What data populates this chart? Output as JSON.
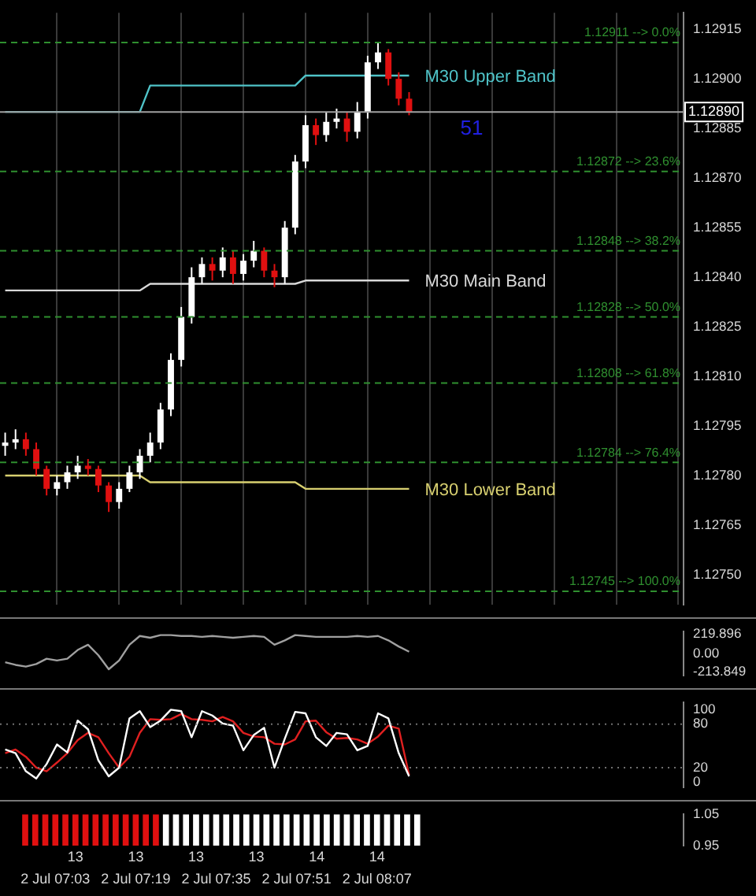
{
  "chart_data": [
    {
      "type": "candlestick",
      "categories": [
        null,
        null,
        null,
        null,
        null,
        null,
        null,
        null,
        null,
        null,
        null,
        null,
        null,
        null,
        null,
        null,
        null,
        null,
        null,
        null,
        null,
        null,
        null,
        null,
        null,
        null,
        null,
        null,
        null,
        null,
        null,
        null,
        null,
        null,
        null,
        null,
        null,
        null,
        null,
        null,
        null,
        null,
        null,
        null,
        null,
        null,
        null,
        null,
        null,
        null,
        null,
        null,
        null,
        null,
        null,
        null,
        null,
        null,
        null,
        null,
        null,
        null,
        null,
        null,
        null,
        null
      ],
      "ohlc": [
        [
          1.12789,
          1.12793,
          1.12786,
          1.1279
        ],
        [
          1.1279,
          1.12794,
          1.12788,
          1.12791
        ],
        [
          1.12791,
          1.12793,
          1.12786,
          1.12788
        ],
        [
          1.12788,
          1.1279,
          1.1278,
          1.12782
        ],
        [
          1.12782,
          1.12783,
          1.12774,
          1.12776
        ],
        [
          1.12776,
          1.1278,
          1.12774,
          1.12778
        ],
        [
          1.12778,
          1.12783,
          1.12776,
          1.12781
        ],
        [
          1.12781,
          1.12786,
          1.12779,
          1.12783
        ],
        [
          1.12783,
          1.12785,
          1.1278,
          1.12782
        ],
        [
          1.12782,
          1.12783,
          1.12775,
          1.12777
        ],
        [
          1.12777,
          1.12778,
          1.12769,
          1.12772
        ],
        [
          1.12772,
          1.12778,
          1.1277,
          1.12776
        ],
        [
          1.12776,
          1.12783,
          1.12775,
          1.12781
        ],
        [
          1.12781,
          1.12788,
          1.12779,
          1.12786
        ],
        [
          1.12786,
          1.12793,
          1.12784,
          1.1279
        ],
        [
          1.1279,
          1.12802,
          1.12788,
          1.128
        ],
        [
          1.128,
          1.12817,
          1.12798,
          1.12815
        ],
        [
          1.12815,
          1.12831,
          1.12813,
          1.12828
        ],
        [
          1.12828,
          1.12843,
          1.12826,
          1.1284
        ],
        [
          1.1284,
          1.12846,
          1.12838,
          1.12844
        ],
        [
          1.12844,
          1.12846,
          1.12839,
          1.12842
        ],
        [
          1.12842,
          1.12849,
          1.1284,
          1.12846
        ],
        [
          1.12846,
          1.12848,
          1.12838,
          1.12841
        ],
        [
          1.12841,
          1.12847,
          1.12839,
          1.12845
        ],
        [
          1.12845,
          1.12851,
          1.12843,
          1.12848
        ],
        [
          1.12848,
          1.12849,
          1.1284,
          1.12842
        ],
        [
          1.12842,
          1.12844,
          1.12837,
          1.1284
        ],
        [
          1.1284,
          1.12857,
          1.12838,
          1.12855
        ],
        [
          1.12855,
          1.12877,
          1.12853,
          1.12875
        ],
        [
          1.12875,
          1.12889,
          1.12873,
          1.12886
        ],
        [
          1.12886,
          1.12888,
          1.1288,
          1.12883
        ],
        [
          1.12883,
          1.1289,
          1.12881,
          1.12887
        ],
        [
          1.12887,
          1.12891,
          1.12885,
          1.12888
        ],
        [
          1.12888,
          1.1289,
          1.12881,
          1.12884
        ],
        [
          1.12884,
          1.12893,
          1.12882,
          1.1289
        ],
        [
          1.1289,
          1.12907,
          1.12888,
          1.12905
        ],
        [
          1.12905,
          1.12911,
          1.12903,
          1.12908
        ],
        [
          1.12908,
          1.12909,
          1.12898,
          1.129
        ],
        [
          1.129,
          1.12902,
          1.12892,
          1.12894
        ],
        [
          1.12894,
          1.12896,
          1.12889,
          1.1289
        ],
        null,
        null,
        null,
        null,
        null,
        null,
        null,
        null,
        null,
        null,
        null,
        null,
        null,
        null,
        null,
        null,
        null,
        null,
        null,
        null,
        null,
        null,
        null,
        null,
        null,
        null
      ],
      "colors": [
        "#ffffff",
        "#ffffff",
        "#e01010",
        "#e01010",
        "#e01010",
        "#ffffff",
        "#ffffff",
        "#ffffff",
        "#e01010",
        "#e01010",
        "#e01010",
        "#ffffff",
        "#ffffff",
        "#ffffff",
        "#ffffff",
        "#ffffff",
        "#ffffff",
        "#ffffff",
        "#ffffff",
        "#ffffff",
        "#e01010",
        "#ffffff",
        "#e01010",
        "#ffffff",
        "#ffffff",
        "#e01010",
        "#e01010",
        "#ffffff",
        "#ffffff",
        "#ffffff",
        "#e01010",
        "#ffffff",
        "#ffffff",
        "#e01010",
        "#ffffff",
        "#ffffff",
        "#ffffff",
        "#e01010",
        "#e01010",
        "#e01010",
        null,
        null,
        null,
        null,
        null,
        null,
        null,
        null,
        null,
        null,
        null,
        null,
        null,
        null,
        null,
        null,
        null,
        null,
        null,
        null,
        null,
        null,
        null,
        null,
        null,
        null
      ],
      "series": [
        {
          "name": "M30 Upper Band",
          "type": "line",
          "color": "#4fc3c8",
          "values": [
            1.1289,
            1.1289,
            1.1289,
            1.1289,
            1.1289,
            1.1289,
            1.1289,
            1.1289,
            1.1289,
            1.1289,
            1.1289,
            1.1289,
            1.1289,
            1.1289,
            1.12898,
            1.12898,
            1.12898,
            1.12898,
            1.12898,
            1.12898,
            1.12898,
            1.12898,
            1.12898,
            1.12898,
            1.12898,
            1.12898,
            1.12898,
            1.12898,
            1.12898,
            1.12901,
            1.12901,
            1.12901,
            1.12901,
            1.12901,
            1.12901,
            1.12901,
            1.12901,
            1.12901,
            1.12901,
            1.12901,
            null,
            null,
            null,
            null,
            null,
            null,
            null,
            null,
            null,
            null,
            null,
            null,
            null,
            null,
            null,
            null,
            null,
            null,
            null,
            null,
            null,
            null,
            null,
            null,
            null,
            null
          ]
        },
        {
          "name": "M30 Main Band",
          "type": "line",
          "color": "#d8d8d8",
          "values": [
            1.12836,
            1.12836,
            1.12836,
            1.12836,
            1.12836,
            1.12836,
            1.12836,
            1.12836,
            1.12836,
            1.12836,
            1.12836,
            1.12836,
            1.12836,
            1.12836,
            1.12838,
            1.12838,
            1.12838,
            1.12838,
            1.12838,
            1.12838,
            1.12838,
            1.12838,
            1.12838,
            1.12838,
            1.12838,
            1.12838,
            1.12838,
            1.12838,
            1.12838,
            1.12839,
            1.12839,
            1.12839,
            1.12839,
            1.12839,
            1.12839,
            1.12839,
            1.12839,
            1.12839,
            1.12839,
            1.12839,
            null,
            null,
            null,
            null,
            null,
            null,
            null,
            null,
            null,
            null,
            null,
            null,
            null,
            null,
            null,
            null,
            null,
            null,
            null,
            null,
            null,
            null,
            null,
            null,
            null,
            null
          ]
        },
        {
          "name": "M30 Lower Band",
          "type": "line",
          "color": "#d8d070",
          "values": [
            1.1278,
            1.1278,
            1.1278,
            1.1278,
            1.1278,
            1.1278,
            1.1278,
            1.1278,
            1.1278,
            1.1278,
            1.1278,
            1.1278,
            1.1278,
            1.1278,
            1.12778,
            1.12778,
            1.12778,
            1.12778,
            1.12778,
            1.12778,
            1.12778,
            1.12778,
            1.12778,
            1.12778,
            1.12778,
            1.12778,
            1.12778,
            1.12778,
            1.12778,
            1.12776,
            1.12776,
            1.12776,
            1.12776,
            1.12776,
            1.12776,
            1.12776,
            1.12776,
            1.12776,
            1.12776,
            1.12776,
            null,
            null,
            null,
            null,
            null,
            null,
            null,
            null,
            null,
            null,
            null,
            null,
            null,
            null,
            null,
            null,
            null,
            null,
            null,
            null,
            null,
            null,
            null,
            null,
            null,
            null
          ]
        }
      ],
      "ylim": [
        1.12741,
        1.1292
      ],
      "yticks": [
        {
          "value": 1.1275,
          "label": "1.12750"
        },
        {
          "value": 1.12765,
          "label": "1.12765"
        },
        {
          "value": 1.1278,
          "label": "1.12780"
        },
        {
          "value": 1.12795,
          "label": "1.12795"
        },
        {
          "value": 1.1281,
          "label": "1.12810"
        },
        {
          "value": 1.12825,
          "label": "1.12825"
        },
        {
          "value": 1.1284,
          "label": "1.12840"
        },
        {
          "value": 1.12855,
          "label": "1.12855"
        },
        {
          "value": 1.1287,
          "label": "1.12870"
        },
        {
          "value": 1.12885,
          "label": "1.12885"
        },
        {
          "value": 1.129,
          "label": "1.12900"
        },
        {
          "value": 1.12915,
          "label": "1.12915"
        }
      ],
      "ref_lines": [
        {
          "axis": "y",
          "value": 1.12911,
          "label": "1.12911 --> 0.0%",
          "color": "#2f8f2f",
          "line_style": "dashed"
        },
        {
          "axis": "y",
          "value": 1.12872,
          "label": "1.12872 --> 23.6%",
          "color": "#2f8f2f",
          "line_style": "dashed"
        },
        {
          "axis": "y",
          "value": 1.12848,
          "label": "1.12848 --> 38.2%",
          "color": "#2f8f2f",
          "line_style": "dashed"
        },
        {
          "axis": "y",
          "value": 1.12828,
          "label": "1.12828 --> 50.0%",
          "color": "#2f8f2f",
          "line_style": "dashed"
        },
        {
          "axis": "y",
          "value": 1.12808,
          "label": "1.12808 --> 61.8%",
          "color": "#2f8f2f",
          "line_style": "dashed"
        },
        {
          "axis": "y",
          "value": 1.12784,
          "label": "1.12784 --> 76.4%",
          "color": "#2f8f2f",
          "line_style": "dashed"
        },
        {
          "axis": "y",
          "value": 1.12745,
          "label": "1.12745 --> 100.0%",
          "color": "#2f8f2f",
          "line_style": "dashed"
        },
        {
          "axis": "y",
          "value": 1.1289,
          "label": "1.12890",
          "color": "#a0a0a0",
          "line_style": "solid"
        }
      ],
      "annotations": [
        "51"
      ],
      "grid": "x",
      "tick_labels": "y"
    },
    {
      "type": "line",
      "categories": [
        null,
        null,
        null,
        null,
        null,
        null,
        null,
        null,
        null,
        null,
        null,
        null,
        null,
        null,
        null,
        null,
        null,
        null,
        null,
        null,
        null,
        null,
        null,
        null,
        null,
        null,
        null,
        null,
        null,
        null,
        null,
        null,
        null,
        null,
        null,
        null,
        null,
        null,
        null,
        null,
        null,
        null,
        null,
        null,
        null,
        null,
        null,
        null,
        null,
        null,
        null,
        null,
        null,
        null,
        null,
        null,
        null,
        null,
        null,
        null,
        null,
        null,
        null,
        null,
        null,
        null
      ],
      "series": [
        {
          "color": "#a0a0a0",
          "values": [
            -100,
            -130,
            -150,
            -120,
            -60,
            -80,
            -60,
            40,
            100,
            -20,
            -180,
            -80,
            100,
            200,
            180,
            210,
            210,
            200,
            200,
            190,
            200,
            190,
            180,
            190,
            200,
            190,
            100,
            150,
            210,
            200,
            190,
            190,
            190,
            190,
            200,
            190,
            200,
            150,
            80,
            20,
            null,
            null,
            null,
            null,
            null,
            null,
            null,
            null,
            null,
            null,
            null,
            null,
            null,
            null,
            null,
            null,
            null,
            null,
            null,
            null,
            null,
            null,
            null,
            null,
            null,
            null
          ]
        }
      ],
      "ylim": [
        -250,
        250
      ],
      "yticks": [
        {
          "value": 219.896,
          "label": "219.896"
        },
        {
          "value": 0,
          "label": "0.00"
        },
        {
          "value": -213.849,
          "label": "-213.849"
        }
      ],
      "tick_labels": "y"
    },
    {
      "type": "line",
      "categories": [
        null,
        null,
        null,
        null,
        null,
        null,
        null,
        null,
        null,
        null,
        null,
        null,
        null,
        null,
        null,
        null,
        null,
        null,
        null,
        null,
        null,
        null,
        null,
        null,
        null,
        null,
        null,
        null,
        null,
        null,
        null,
        null,
        null,
        null,
        null,
        null,
        null,
        null,
        null,
        null,
        null,
        null,
        null,
        null,
        null,
        null,
        null,
        null,
        null,
        null,
        null,
        null,
        null,
        null,
        null,
        null,
        null,
        null,
        null,
        null,
        null,
        null,
        null,
        null,
        null,
        null
      ],
      "series": [
        {
          "color": "#ffffff",
          "values": [
            45,
            40,
            15,
            5,
            25,
            52,
            41,
            85,
            73,
            30,
            8,
            20,
            88,
            98,
            76,
            85,
            100,
            98,
            62,
            98,
            92,
            81,
            78,
            44,
            65,
            75,
            20,
            60,
            97,
            95,
            62,
            50,
            68,
            66,
            44,
            50,
            95,
            88,
            40,
            8,
            null,
            null,
            null,
            null,
            null,
            null,
            null,
            null,
            null,
            null,
            null,
            null,
            null,
            null,
            null,
            null,
            null,
            null,
            null,
            null,
            null,
            null,
            null,
            null,
            null,
            null
          ]
        },
        {
          "color": "#e02020",
          "values": [
            40,
            45,
            35,
            20,
            15,
            27,
            40,
            58,
            68,
            62,
            40,
            20,
            35,
            68,
            87,
            86,
            87,
            94,
            87,
            86,
            84,
            90,
            84,
            68,
            63,
            62,
            53,
            52,
            59,
            84,
            85,
            69,
            60,
            61,
            59,
            53,
            63,
            78,
            74,
            10,
            null,
            null,
            null,
            null,
            null,
            null,
            null,
            null,
            null,
            null,
            null,
            null,
            null,
            null,
            null,
            null,
            null,
            null,
            null,
            null,
            null,
            null,
            null,
            null,
            null,
            null
          ]
        }
      ],
      "ylim": [
        -7,
        110
      ],
      "yticks": [
        0,
        20,
        80,
        100
      ],
      "ref_lines": [
        {
          "axis": "y",
          "value": 80,
          "color": "#707070",
          "line_style": "dotted"
        },
        {
          "axis": "y",
          "value": 20,
          "color": "#707070",
          "line_style": "dotted"
        }
      ],
      "tick_labels": "y"
    },
    {
      "type": "bar",
      "categories": [
        null,
        null,
        null,
        "2 Jul 07:03",
        null,
        null,
        null,
        null,
        null,
        null,
        null,
        "2 Jul 07:19",
        null,
        null,
        null,
        null,
        null,
        null,
        null,
        "2 Jul 07:35",
        null,
        null,
        null,
        null,
        null,
        null,
        null,
        "2 Jul 07:51",
        null,
        null,
        null,
        null,
        null,
        null,
        null,
        "2 Jul 08:07",
        null,
        null,
        null,
        null,
        null,
        null,
        null,
        null,
        null,
        null,
        null,
        null,
        null,
        null,
        null,
        null,
        null,
        null,
        null,
        null,
        null,
        null,
        null,
        null,
        null,
        null,
        null,
        null,
        null,
        null
      ],
      "values": [
        1.05,
        1.05,
        1.05,
        1.05,
        1.05,
        1.05,
        1.05,
        1.05,
        1.05,
        1.05,
        1.05,
        1.05,
        1.05,
        1.05,
        1.05,
        1.05,
        1.05,
        1.05,
        1.05,
        1.05,
        1.05,
        1.05,
        1.05,
        1.05,
        1.05,
        1.05,
        1.05,
        1.05,
        1.05,
        1.05,
        1.05,
        1.05,
        1.05,
        1.05,
        1.05,
        1.05,
        1.05,
        1.05,
        1.05,
        1.05,
        null,
        null,
        null,
        null,
        null,
        null,
        null,
        null,
        null,
        null,
        null,
        null,
        null,
        null,
        null,
        null,
        null,
        null,
        null,
        null,
        null,
        null,
        null,
        null,
        null,
        null
      ],
      "colors": [
        "#e01010",
        "#e01010",
        "#e01010",
        "#e01010",
        "#e01010",
        "#e01010",
        "#e01010",
        "#e01010",
        "#e01010",
        "#e01010",
        "#e01010",
        "#e01010",
        "#e01010",
        "#e01010",
        "#ffffff",
        "#ffffff",
        "#ffffff",
        "#ffffff",
        "#ffffff",
        "#ffffff",
        "#ffffff",
        "#ffffff",
        "#ffffff",
        "#ffffff",
        "#ffffff",
        "#ffffff",
        "#ffffff",
        "#ffffff",
        "#ffffff",
        "#ffffff",
        "#ffffff",
        "#ffffff",
        "#ffffff",
        "#ffffff",
        "#ffffff",
        "#ffffff",
        "#ffffff",
        "#ffffff",
        "#ffffff",
        "#ffffff",
        null,
        null,
        null,
        null,
        null,
        null,
        null,
        null,
        null,
        null,
        null,
        null,
        null,
        null,
        null,
        null,
        null,
        null,
        null,
        null,
        null,
        null,
        null,
        null,
        null,
        null
      ],
      "ylim": [
        0.95,
        1.05
      ],
      "yticks": [
        {
          "value": 0.95,
          "label": "0.95"
        },
        {
          "value": 1.05,
          "label": "1.05"
        }
      ],
      "annotations": [
        "13",
        "13",
        "13",
        "13",
        "14",
        "14"
      ]
    }
  ]
}
